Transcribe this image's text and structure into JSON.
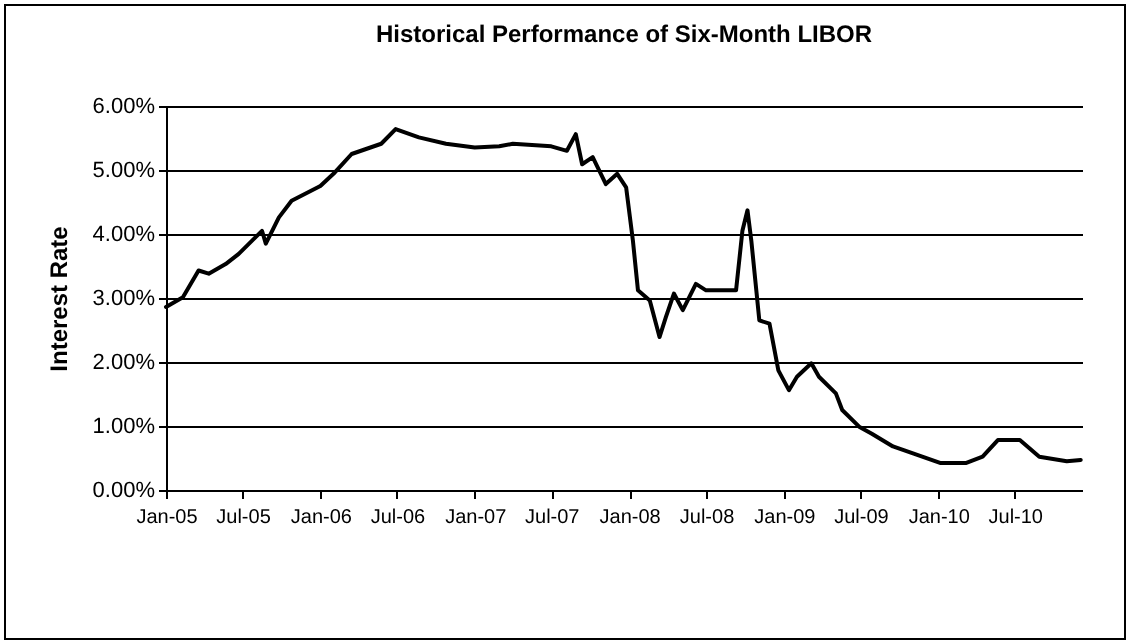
{
  "chart_data": {
    "type": "line",
    "title": "Historical Performance of Six-Month LIBOR",
    "ylabel": "Interest Rate",
    "x": [
      "2005-01-01",
      "2005-02-10",
      "2005-03-19",
      "2005-04-12",
      "2005-05-22",
      "2005-06-22",
      "2005-08-16",
      "2005-08-25",
      "2005-09-25",
      "2005-10-25",
      "2006-01-01",
      "2006-02-01",
      "2006-03-16",
      "2006-05-25",
      "2006-06-28",
      "2006-08-22",
      "2006-10-25",
      "2007-01-01",
      "2007-02-28",
      "2007-04-01",
      "2007-07-01",
      "2007-08-07",
      "2007-08-28",
      "2007-09-12",
      "2007-10-07",
      "2007-11-07",
      "2007-12-04",
      "2007-12-25",
      "2008-01-10",
      "2008-01-22",
      "2008-02-19",
      "2008-03-13",
      "2008-03-28",
      "2008-04-16",
      "2008-05-07",
      "2008-06-07",
      "2008-07-01",
      "2008-09-10",
      "2008-09-25",
      "2008-10-07",
      "2008-10-16",
      "2008-11-04",
      "2008-11-28",
      "2008-12-19",
      "2009-01-13",
      "2009-02-01",
      "2009-03-07",
      "2009-03-25",
      "2009-05-04",
      "2009-05-19",
      "2009-06-28",
      "2009-07-28",
      "2009-09-16",
      "2009-11-04",
      "2010-01-07",
      "2010-03-07",
      "2010-04-16",
      "2010-05-22",
      "2010-07-13",
      "2010-08-28",
      "2010-11-01",
      "2010-12-04"
    ],
    "series": [
      {
        "color": "#000000",
        "values": [
          2.86,
          3.01,
          3.43,
          3.38,
          3.53,
          3.69,
          4.05,
          3.85,
          4.26,
          4.52,
          4.75,
          4.94,
          5.25,
          5.41,
          5.64,
          5.51,
          5.41,
          5.35,
          5.37,
          5.41,
          5.37,
          5.3,
          5.56,
          5.09,
          5.2,
          4.78,
          4.94,
          4.73,
          3.9,
          3.12,
          2.96,
          2.39,
          2.7,
          3.07,
          2.81,
          3.22,
          3.12,
          3.12,
          4.05,
          4.37,
          3.9,
          2.65,
          2.6,
          1.87,
          1.56,
          1.77,
          1.98,
          1.77,
          1.51,
          1.25,
          0.99,
          0.88,
          0.68,
          0.57,
          0.42,
          0.42,
          0.52,
          0.78,
          0.78,
          0.52,
          0.45,
          0.47
        ]
      }
    ],
    "xlim": [
      "2005-01-01",
      "2010-12-07"
    ],
    "xticks": [
      {
        "value": "2005-01-01",
        "label": "Jan-05"
      },
      {
        "value": "2005-07-01",
        "label": "Jul-05"
      },
      {
        "value": "2006-01-01",
        "label": "Jan-06"
      },
      {
        "value": "2006-07-01",
        "label": "Jul-06"
      },
      {
        "value": "2007-01-01",
        "label": "Jan-07"
      },
      {
        "value": "2007-07-01",
        "label": "Jul-07"
      },
      {
        "value": "2008-01-01",
        "label": "Jan-08"
      },
      {
        "value": "2008-07-01",
        "label": "Jul-08"
      },
      {
        "value": "2009-01-01",
        "label": "Jan-09"
      },
      {
        "value": "2009-07-01",
        "label": "Jul-09"
      },
      {
        "value": "2010-01-01",
        "label": "Jan-10"
      },
      {
        "value": "2010-07-01",
        "label": "Jul-10"
      }
    ],
    "ylim": [
      0,
      6
    ],
    "yticks": [
      {
        "value": 0,
        "label": "0.00%"
      },
      {
        "value": 1,
        "label": "1.00%"
      },
      {
        "value": 2,
        "label": "2.00%"
      },
      {
        "value": 3,
        "label": "3.00%"
      },
      {
        "value": 4,
        "label": "4.00%"
      },
      {
        "value": 5,
        "label": "5.00%"
      },
      {
        "value": 6,
        "label": "6.00%"
      }
    ],
    "grid": "y",
    "marker": "none",
    "line_style": "solid"
  }
}
